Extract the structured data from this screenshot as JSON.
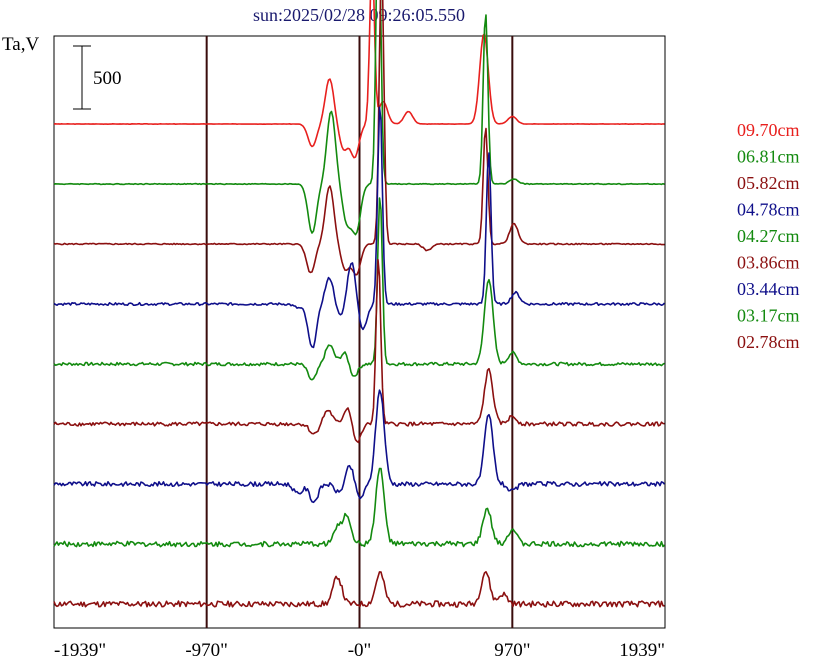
{
  "chart_data": {
    "type": "line",
    "title": "sun:2025/02/28 09:26:05.550",
    "ylabel": "Ta,V",
    "scale_bar_label": "500",
    "x_tick_labels": [
      "-1939\"",
      "-970\"",
      "-0\"",
      "970\"",
      "1939\""
    ],
    "x_ticks": [
      -1939,
      -970,
      0,
      970,
      1939
    ],
    "xlim": [
      -1939,
      1939
    ],
    "vertical_markers": [
      -970,
      0,
      970
    ],
    "series": [
      {
        "name": "09.70cm",
        "color": "#e8201e",
        "peaks": [
          [
            -300,
            -180
          ],
          [
            -190,
            360
          ],
          [
            -100,
            -200
          ],
          [
            -30,
            -260
          ],
          [
            80,
            1300
          ],
          [
            150,
            180
          ],
          [
            310,
            100
          ],
          [
            790,
            720
          ],
          [
            970,
            60
          ]
        ]
      },
      {
        "name": "06.81cm",
        "color": "#138a0f",
        "peaks": [
          [
            -300,
            -390
          ],
          [
            -180,
            580
          ],
          [
            -80,
            -300
          ],
          [
            -20,
            -370
          ],
          [
            120,
            2270
          ],
          [
            800,
            1370
          ],
          [
            980,
            40
          ]
        ]
      },
      {
        "name": "05.82cm",
        "color": "#8b1010",
        "peaks": [
          [
            -310,
            -230
          ],
          [
            -190,
            460
          ],
          [
            -90,
            -200
          ],
          [
            -20,
            -240
          ],
          [
            140,
            2230
          ],
          [
            800,
            930
          ],
          [
            980,
            160
          ],
          [
            430,
            -50
          ]
        ]
      },
      {
        "name": "04.78cm",
        "color": "#0f0f8a",
        "peaks": [
          [
            -390,
            -30
          ],
          [
            -300,
            -350
          ],
          [
            -190,
            210
          ],
          [
            -120,
            -110
          ],
          [
            -50,
            340
          ],
          [
            20,
            -210
          ],
          [
            130,
            1600
          ],
          [
            820,
            1210
          ],
          [
            990,
            90
          ]
        ]
      },
      {
        "name": "04.27cm",
        "color": "#138a0f",
        "peaks": [
          [
            -300,
            -130
          ],
          [
            -190,
            150
          ],
          [
            -90,
            100
          ],
          [
            -40,
            -110
          ],
          [
            130,
            1350
          ],
          [
            820,
            680
          ],
          [
            970,
            90
          ]
        ]
      },
      {
        "name": "03.86cm",
        "color": "#8b1010",
        "peaks": [
          [
            -290,
            -80
          ],
          [
            -200,
            110
          ],
          [
            -70,
            150
          ],
          [
            -20,
            -170
          ],
          [
            120,
            1310
          ],
          [
            820,
            430
          ],
          [
            970,
            60
          ]
        ]
      },
      {
        "name": "03.44cm",
        "color": "#0f0f8a",
        "peaks": [
          [
            -390,
            -80
          ],
          [
            -290,
            -140
          ],
          [
            -130,
            -70
          ],
          [
            -60,
            150
          ],
          [
            0,
            -120
          ],
          [
            130,
            750
          ],
          [
            820,
            550
          ],
          [
            970,
            -60
          ]
        ]
      },
      {
        "name": "03.17cm",
        "color": "#138a0f",
        "peaks": [
          [
            -140,
            120
          ],
          [
            -80,
            220
          ],
          [
            130,
            600
          ],
          [
            810,
            280
          ],
          [
            970,
            120
          ]
        ]
      },
      {
        "name": "02.78cm",
        "color": "#8b1010",
        "peaks": [
          [
            -140,
            220
          ],
          [
            130,
            250
          ],
          [
            800,
            260
          ],
          [
            910,
            80
          ]
        ]
      }
    ]
  },
  "legend": [
    {
      "label": "09.70cm",
      "color": "#e8201e"
    },
    {
      "label": "06.81cm",
      "color": "#138a0f"
    },
    {
      "label": "05.82cm",
      "color": "#8b1010"
    },
    {
      "label": "04.78cm",
      "color": "#0f0f8a"
    },
    {
      "label": "04.27cm",
      "color": "#138a0f"
    },
    {
      "label": "03.86cm",
      "color": "#8b1010"
    },
    {
      "label": "03.44cm",
      "color": "#0f0f8a"
    },
    {
      "label": "03.17cm",
      "color": "#138a0f"
    },
    {
      "label": "02.78cm",
      "color": "#8b1010"
    }
  ]
}
